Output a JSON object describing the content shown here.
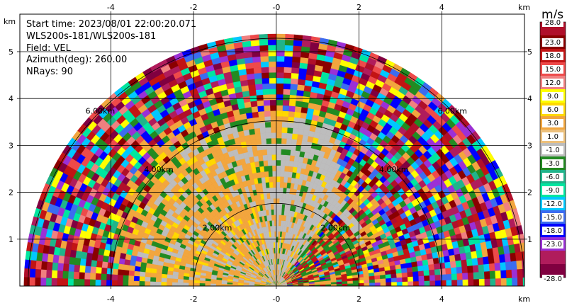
{
  "info": {
    "start_time": "Start time: 2023/08/01 22:00:20.071",
    "instrument": "WLS200s-181/WLS200s-181",
    "field": "Field: VEL",
    "azimuth": "Azimuth(deg): 260.00",
    "nrays": "NRays: 90"
  },
  "axes": {
    "x_unit": "km",
    "y_unit": "km",
    "x_ticks": [
      "-4",
      "-2",
      "-0",
      "2",
      "4"
    ],
    "y_ticks": [
      "1",
      "2",
      "3",
      "4",
      "5"
    ]
  },
  "rings": [
    "2.00km",
    "4.00km",
    "6.00km"
  ],
  "colorbar": {
    "title": "m/s",
    "labels": [
      "28.0",
      "23.0",
      "18.0",
      "15.0",
      "12.0",
      "9.0",
      "6.0",
      "3.0",
      "1.0",
      "-1.0",
      "-3.0",
      "-6.0",
      "-9.0",
      "-12.0",
      "-15.0",
      "-18.0",
      "-23.0",
      "-28.0"
    ],
    "colors": [
      "#b00f2a",
      "#8a0000",
      "#c21414",
      "#ee4a4a",
      "#f08080",
      "#ffff00",
      "#ffd800",
      "#f2a63e",
      "#ecc07c",
      "#bdbdbd",
      "#228b22",
      "#20b48a",
      "#00e6a0",
      "#00c8ff",
      "#3c6cf0",
      "#0000ff",
      "#9b30d6",
      "#b01c5c",
      "#800040"
    ]
  },
  "chart_data": {
    "type": "heatmap",
    "title": "",
    "field": "VEL",
    "units": "m/s",
    "xlim": [
      -6.2,
      6.0
    ],
    "ylim": [
      0,
      5.8
    ],
    "max_range_km": 6.1,
    "range_rings_km": [
      2,
      4,
      6
    ],
    "vmin": -28.0,
    "vmax": 28.0
  }
}
